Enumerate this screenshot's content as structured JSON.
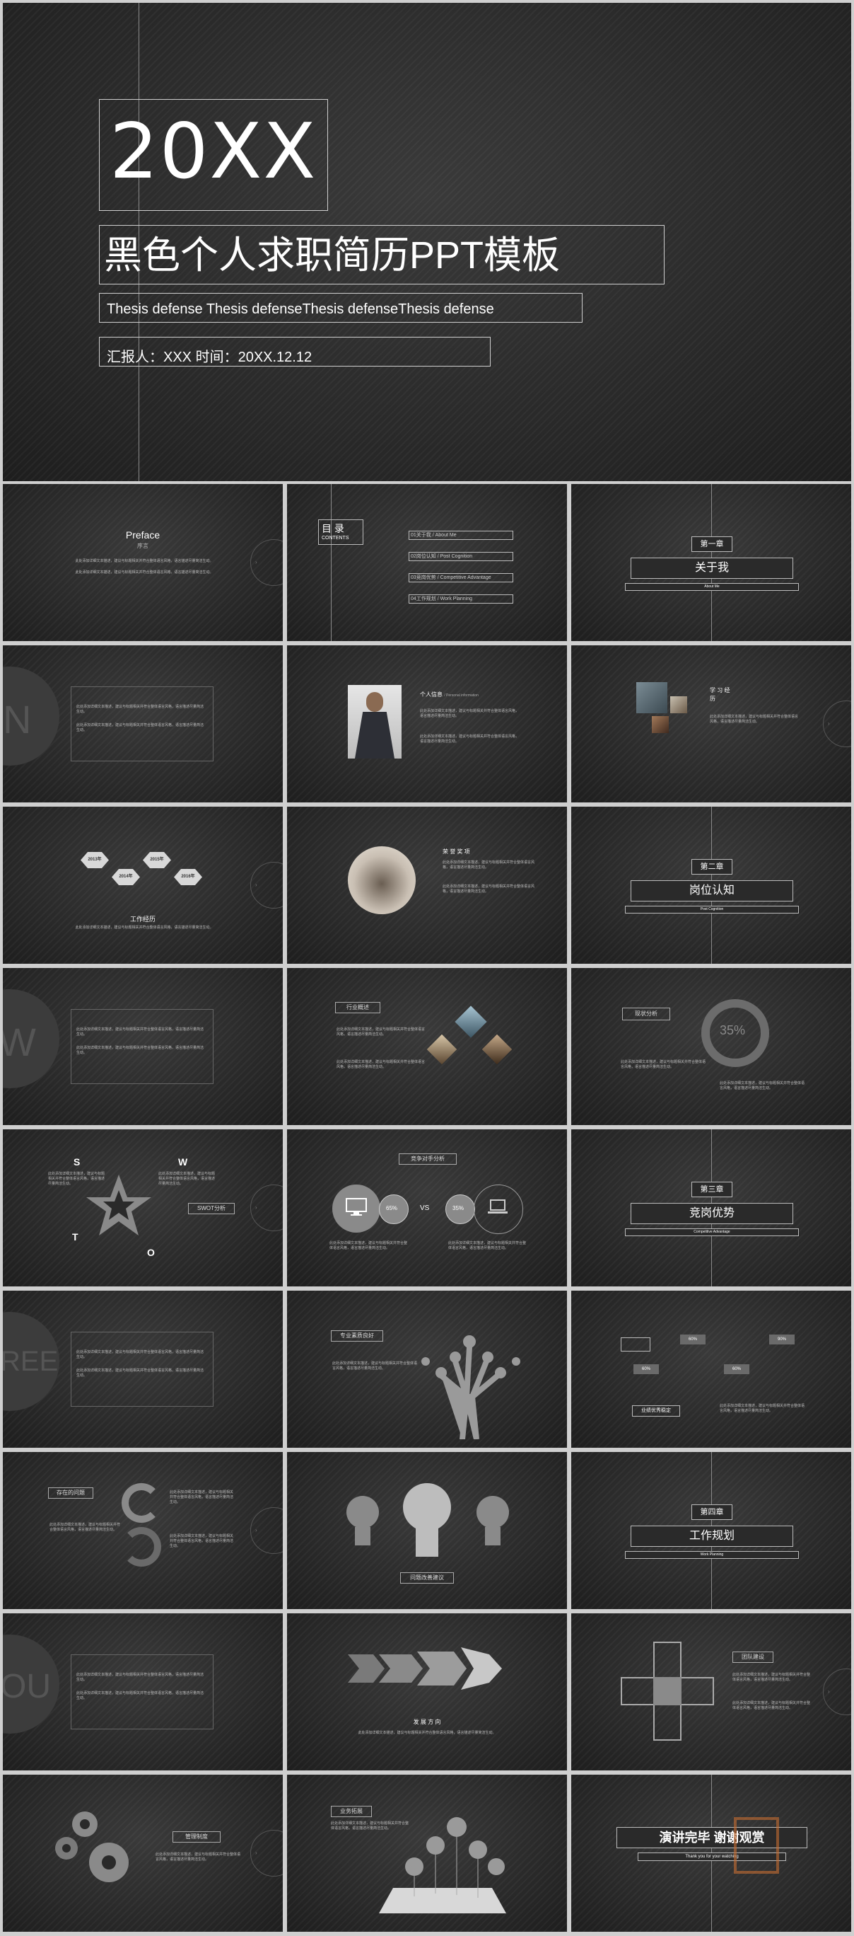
{
  "cover": {
    "year": "20XX",
    "title": "黑色个人求职简历PPT模板",
    "subtitle": "Thesis defense Thesis defenseThesis defenseThesis defense",
    "reporter": "汇报人：XXX  时间：20XX.12.12"
  },
  "preface": {
    "title": "Preface",
    "subtitle": "序言"
  },
  "toc": {
    "title": "目 录",
    "subtitle": "CONTENTS",
    "items": [
      "01关于我 / About Me",
      "02岗位认知 / Post Cognition",
      "03竞岗优势 / Competitive Advantage",
      "04工作规划 / Work Planning"
    ]
  },
  "chapters": [
    {
      "num": "第一章",
      "title": "关于我",
      "en": "About Me"
    },
    {
      "num": "第二章",
      "title": "岗位认知",
      "en": "Post Cognition"
    },
    {
      "num": "第三章",
      "title": "竞岗优势",
      "en": "Competitive Advantage"
    },
    {
      "num": "第四章",
      "title": "工作规划",
      "en": "Work Planning"
    }
  ],
  "personal": {
    "title": "个人信息",
    "title_en": "/ Personal information"
  },
  "study": {
    "title": "学 习 经 历"
  },
  "work": {
    "title": "工作经历",
    "years": [
      "2013年",
      "2014年",
      "2015年",
      "2016年"
    ]
  },
  "honor": {
    "title": "荣 誉 奖 项"
  },
  "industry": {
    "title": "行业概述"
  },
  "status": {
    "title": "现状分析",
    "percent": "35%"
  },
  "swot": {
    "letters": [
      "S",
      "W",
      "T",
      "O"
    ],
    "label": "SWOT分析"
  },
  "compete": {
    "title": "竞争对手分析",
    "left": "65%",
    "vs": "VS",
    "right": "35%"
  },
  "skill": {
    "title": "专业素质良好"
  },
  "advantage": {
    "title": "业绩优秀稳定",
    "p1": "60%",
    "p2": "90%",
    "p3": "92%",
    "p4": "60%"
  },
  "problem": {
    "title": "存在的问题"
  },
  "suggest": {
    "title": "问题改善建议"
  },
  "direction": {
    "title": "发 展 方 向"
  },
  "team": {
    "title": "团队建设"
  },
  "system": {
    "title": "管理制度"
  },
  "business": {
    "title": "业务拓展"
  },
  "ending": {
    "title": "演讲完毕 谢谢观赏",
    "en": "Thank you for your watching"
  },
  "letters": {
    "n": "N",
    "w": "W",
    "ree": "REE",
    "ou": "OU"
  },
  "placeholder": "此处添加详细文本描述，建议与标题相关并符合整体语言风格，语言描述尽量简洁生动。"
}
